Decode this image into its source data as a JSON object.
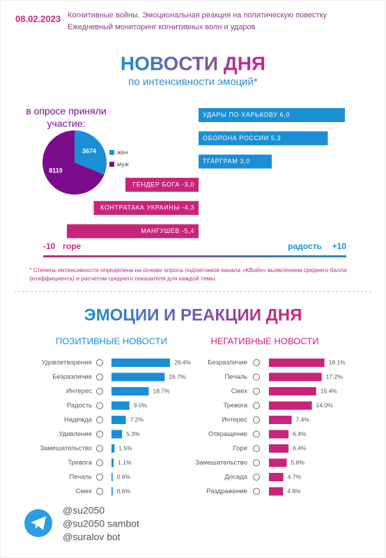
{
  "header": {
    "date": "08.02.2023",
    "line1": "Когнитивные войны. Эмоциональная реакция на политическую повестку",
    "line2": "Ежедневный мониторинг когнитивных волн и ударов"
  },
  "news_title": "НОВОСТИ ДНЯ",
  "news_subtitle": "по интенсивности эмоций*",
  "footnote": "* Степень интенсивности определена на основе опроса подписчиков канала «КВойн» выявлением среднего балла (коэффициента) и расчетом среднего показателя для каждой темы.",
  "emotions_title": "ЭМОЦИИ И РЕАКЦИИ ДНЯ",
  "footer": {
    "handles": [
      "@su2050",
      "@su2050 sambot",
      "@suralov bot"
    ]
  },
  "chart_data": [
    {
      "type": "pie",
      "title": "в опросе приняли участие:",
      "categories": [
        "жен",
        "муж"
      ],
      "values": [
        3674,
        8110
      ],
      "colors": [
        "#1a8fd6",
        "#7a0c8c"
      ]
    },
    {
      "type": "diverging",
      "categories": [
        "УДАРЫ ПО ХАРЬКОВУ",
        "ОБОРОНА РОССИИ",
        "ТГАРГРАМ",
        "ГЕНДЕР БОГА",
        "КОНТРАТАКА УКРАИНЫ",
        "МАНГУШЕВ"
      ],
      "values": [
        6.0,
        5.3,
        3.0,
        -3.0,
        -4.3,
        -5.4
      ],
      "value_labels": [
        "6,0",
        "5,3",
        "3,0",
        "-3,0",
        "-4,3",
        "-5,4"
      ],
      "colors": {
        "positive": "#1a8fd6",
        "negative": "#c8247a"
      },
      "xlim": [
        -10,
        10
      ],
      "xticks": [
        -10,
        {
          "value": 10,
          "label": "+10"
        }
      ],
      "axis_labels": [
        "горе",
        "радость"
      ]
    },
    {
      "type": "bar",
      "title": "ПОЗИТИВНЫЕ НОВОСТИ",
      "color": "#1a8fd6",
      "categories": [
        "Удовлетворение",
        "Безразличие",
        "Интерес",
        "Радость",
        "Надежда",
        "Удивление",
        "Замешательство",
        "Тревога",
        "Печаль",
        "Смех"
      ],
      "values": [
        29.4,
        26.7,
        18.7,
        9.0,
        7.2,
        5.3,
        1.5,
        1.1,
        0.6,
        0.6
      ],
      "value_labels": [
        "29.4%",
        "26.7%",
        "18.7%",
        "9.0%",
        "7.2%",
        "5.3%",
        "1.5%",
        "1.1%",
        "0.6%",
        "0.6%"
      ]
    },
    {
      "type": "bar",
      "title": "НЕГАТИВНЫЕ НОВОСТИ",
      "color": "#c8247a",
      "categories": [
        "Безразличие",
        "Печаль",
        "Смех",
        "Тревога",
        "Интерес",
        "Отвращение",
        "Горе",
        "Замешательство",
        "Досада",
        "Раздражение"
      ],
      "values": [
        18.1,
        17.2,
        15.4,
        14.0,
        7.4,
        6.4,
        6.4,
        5.8,
        4.7,
        4.6
      ],
      "value_labels": [
        "18.1%",
        "17.2%",
        "15.4%",
        "14.0%",
        "7.4%",
        "6.4%",
        "6.4%",
        "5.8%",
        "4.7%",
        "4.6%"
      ]
    }
  ]
}
